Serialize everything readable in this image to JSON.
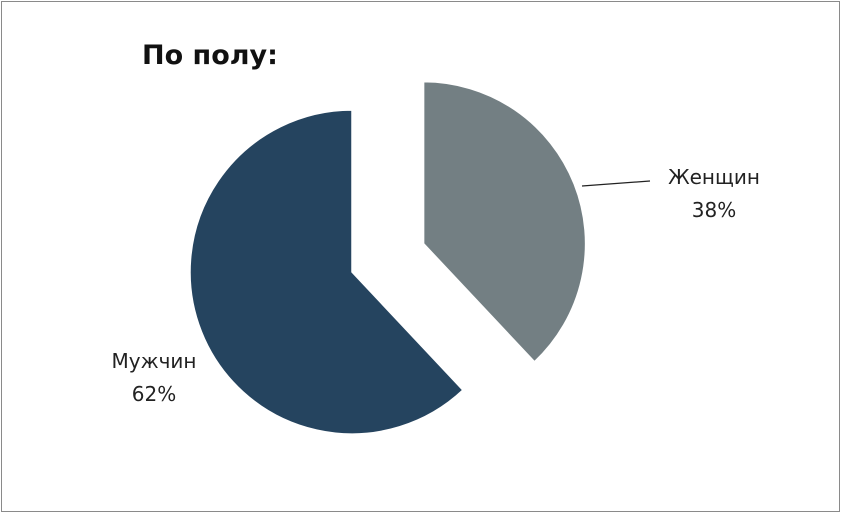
{
  "chart_data": {
    "type": "pie",
    "title": "По полу:",
    "slices": [
      {
        "label": "Женщин",
        "value": 38,
        "value_label": "38%",
        "color": "#737f83",
        "exploded": true
      },
      {
        "label": "Мужчин",
        "value": 62,
        "value_label": "62%",
        "color": "#25445f",
        "exploded": false
      }
    ],
    "legend": "none",
    "data_labels": "category and percent"
  }
}
